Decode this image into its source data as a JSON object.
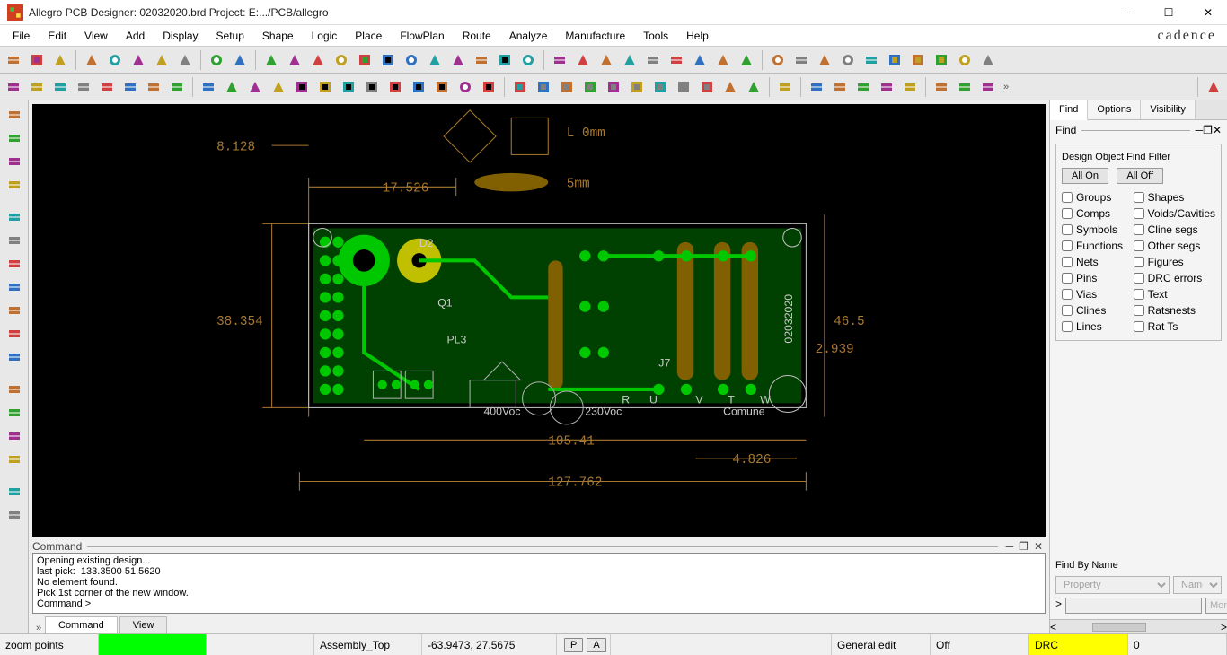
{
  "window": {
    "title": "Allegro PCB Designer: 02032020.brd  Project: E:.../PCB/allegro",
    "brand": "cādence"
  },
  "menu": [
    "File",
    "Edit",
    "View",
    "Add",
    "Display",
    "Setup",
    "Shape",
    "Logic",
    "Place",
    "FlowPlan",
    "Route",
    "Analyze",
    "Manufacture",
    "Tools",
    "Help"
  ],
  "toolbar1_groups": [
    [
      "new-file",
      "open-file",
      "save-file"
    ],
    [
      "move",
      "copy",
      "delete",
      "undo",
      "redo"
    ],
    [
      "zoom-tool",
      "pin-tool"
    ],
    [
      "grid-a",
      "grid-b",
      "zoom-in",
      "zoom-out",
      "zoom-fit",
      "zoom-world",
      "zoom-sel",
      "zoom-prev",
      "refresh",
      "3d",
      "layers-mgr",
      "flip"
    ],
    [
      "grid-toggle",
      "color-view",
      "layer-view",
      "constraint",
      "cm-a",
      "cm-b",
      "cm-c",
      "cm-d",
      "cm-e"
    ],
    [
      "help",
      "info",
      "notes",
      "measure",
      "drc",
      "sun-a",
      "sun-b",
      "hist",
      "flag",
      "ptr"
    ]
  ],
  "toolbar2_groups": [
    [
      "sq1",
      "sq2",
      "sq3",
      "sq4",
      "sq5",
      "sq6",
      "sq7",
      "sq8"
    ],
    [
      "shape-rect",
      "shape-rect2",
      "shape-circ",
      "select",
      "place-a",
      "place-b",
      "place-c",
      "place-d",
      "place-e",
      "place-f",
      "place-g",
      "dim-h",
      "dim-h2"
    ],
    [
      "rt1",
      "rt2",
      "rt3",
      "rt4",
      "rt5",
      "rt6",
      "rt7",
      "rt8",
      "rt9",
      "rt10",
      "rt11"
    ],
    [
      "an1"
    ],
    [
      "mf1",
      "mf2",
      "mf3",
      "mf4",
      "mf5"
    ],
    [
      "tl1",
      "tl2",
      "tl3"
    ]
  ],
  "toolbar2_tail": [
    "app-mode"
  ],
  "left_tools": [
    "lt1",
    "lt2",
    "lt3",
    "lt4",
    "lt-sep",
    "lt5",
    "lt6",
    "lt7",
    "lt8",
    "lt9",
    "lt10",
    "lt11",
    "lt-sep",
    "lt12",
    "lt13",
    "lt14",
    "lt15",
    "lt-sep",
    "lt16",
    "lt17"
  ],
  "canvas": {
    "background": "#000000",
    "annotations": {
      "l0mm": "L 0mm",
      "l5mm": "5mm"
    },
    "dimensions": {
      "d1": "8.128",
      "d2": "17.526",
      "d3": "38.354",
      "d4": "105.41",
      "d5": "127.762",
      "d6": "4.826",
      "d7": "2.939",
      "d8": "46.5"
    },
    "silk_labels": [
      "R",
      "U",
      "V",
      "T",
      "W",
      "Comune",
      "230Voc",
      "400Voc",
      "J7",
      "PL3",
      "D2",
      "Q1",
      "02032020"
    ]
  },
  "command": {
    "label": "Command",
    "lines": "Opening existing design...\nlast pick:  133.3500 51.5620\nNo element found.\nPick 1st corner of the new window.\nCommand >",
    "tabs": [
      "Command",
      "View"
    ]
  },
  "right": {
    "tabs": [
      "Find",
      "Options",
      "Visibility"
    ],
    "section": "Find",
    "filter_title": "Design Object Find Filter",
    "all_on": "All On",
    "all_off": "All Off",
    "filters_left": [
      "Groups",
      "Comps",
      "Symbols",
      "Functions",
      "Nets",
      "Pins",
      "Vias",
      "Clines",
      "Lines"
    ],
    "filters_right": [
      "Shapes",
      "Voids/Cavities",
      "Cline segs",
      "Other segs",
      "Figures",
      "DRC errors",
      "Text",
      "Ratsnests",
      "Rat Ts"
    ],
    "find_by_name": "Find By Name",
    "dd1": "Property",
    "dd2": "Name",
    "more": "More...",
    "arrow": ">"
  },
  "status": {
    "mode": "zoom points",
    "layer": "Assembly_Top",
    "coords": "-63.9473, 27.5675",
    "btn_p": "P",
    "btn_a": "A",
    "edit": "General edit",
    "onoff": "Off",
    "drc_label": "DRC",
    "drc_count": "0"
  }
}
